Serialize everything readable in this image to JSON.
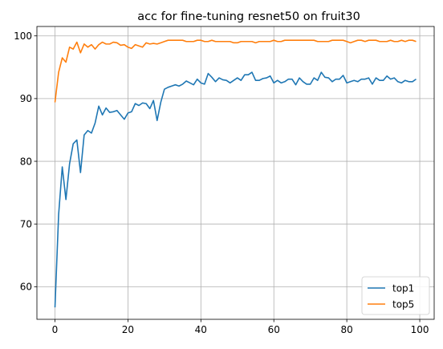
{
  "chart_data": {
    "type": "line",
    "title": "acc for fine-tuning resnet50 on fruit30",
    "xlabel": "",
    "ylabel": "",
    "xlim": [
      -4.95,
      103.95
    ],
    "ylim": [
      54.8,
      101.5
    ],
    "x_ticks": [
      0,
      20,
      40,
      60,
      80,
      100
    ],
    "y_ticks": [
      60,
      70,
      80,
      90,
      100
    ],
    "grid": true,
    "legend_position": "lower-right",
    "x": [
      0,
      1,
      2,
      3,
      4,
      5,
      6,
      7,
      8,
      9,
      10,
      11,
      12,
      13,
      14,
      15,
      16,
      17,
      18,
      19,
      20,
      21,
      22,
      23,
      24,
      25,
      26,
      27,
      28,
      29,
      30,
      31,
      32,
      33,
      34,
      35,
      36,
      37,
      38,
      39,
      40,
      41,
      42,
      43,
      44,
      45,
      46,
      47,
      48,
      49,
      50,
      51,
      52,
      53,
      54,
      55,
      56,
      57,
      58,
      59,
      60,
      61,
      62,
      63,
      64,
      65,
      66,
      67,
      68,
      69,
      70,
      71,
      72,
      73,
      74,
      75,
      76,
      77,
      78,
      79,
      80,
      81,
      82,
      83,
      84,
      85,
      86,
      87,
      88,
      89,
      90,
      91,
      92,
      93,
      94,
      95,
      96,
      97,
      98,
      99
    ],
    "series": [
      {
        "name": "top1",
        "color": "#1f77b4",
        "values": [
          56.7,
          71.5,
          79.1,
          73.9,
          79.6,
          82.8,
          83.4,
          78.2,
          84.2,
          84.9,
          84.5,
          86.1,
          88.8,
          87.4,
          88.5,
          87.8,
          87.9,
          88.1,
          87.4,
          86.7,
          87.7,
          87.9,
          89.2,
          88.9,
          89.3,
          89.2,
          88.4,
          89.7,
          86.5,
          89.4,
          91.5,
          91.8,
          92.0,
          92.2,
          92.0,
          92.3,
          92.8,
          92.5,
          92.2,
          93.1,
          92.5,
          92.3,
          94.0,
          93.4,
          92.7,
          93.3,
          93.0,
          92.9,
          92.5,
          92.9,
          93.3,
          92.9,
          93.8,
          93.8,
          94.2,
          92.9,
          92.9,
          93.2,
          93.3,
          93.6,
          92.5,
          92.9,
          92.5,
          92.7,
          93.1,
          93.1,
          92.2,
          93.3,
          92.7,
          92.3,
          92.3,
          93.3,
          92.9,
          94.2,
          93.4,
          93.3,
          92.7,
          93.1,
          93.1,
          93.7,
          92.5,
          92.7,
          92.9,
          92.7,
          93.1,
          93.1,
          93.3,
          92.3,
          93.3,
          92.9,
          92.9,
          93.6,
          93.1,
          93.3,
          92.7,
          92.5,
          92.9,
          92.7,
          92.7,
          93.1
        ]
      },
      {
        "name": "top5",
        "color": "#ff7f0e",
        "values": [
          89.4,
          94.2,
          96.5,
          95.8,
          98.2,
          97.9,
          99.0,
          97.3,
          98.7,
          98.2,
          98.6,
          97.9,
          98.6,
          99.0,
          98.7,
          98.7,
          99.0,
          98.9,
          98.5,
          98.6,
          98.2,
          98.0,
          98.6,
          98.4,
          98.2,
          98.9,
          98.7,
          98.8,
          98.7,
          98.9,
          99.1,
          99.3,
          99.3,
          99.3,
          99.3,
          99.3,
          99.1,
          99.1,
          99.1,
          99.3,
          99.3,
          99.1,
          99.1,
          99.3,
          99.1,
          99.1,
          99.1,
          99.1,
          99.1,
          98.9,
          98.9,
          99.1,
          99.1,
          99.1,
          99.1,
          98.9,
          99.1,
          99.1,
          99.1,
          99.1,
          99.3,
          99.1,
          99.1,
          99.3,
          99.3,
          99.3,
          99.3,
          99.3,
          99.3,
          99.3,
          99.3,
          99.3,
          99.1,
          99.1,
          99.1,
          99.1,
          99.3,
          99.3,
          99.3,
          99.3,
          99.1,
          98.9,
          99.1,
          99.3,
          99.3,
          99.1,
          99.3,
          99.3,
          99.3,
          99.1,
          99.1,
          99.1,
          99.3,
          99.1,
          99.1,
          99.3,
          99.1,
          99.3,
          99.3,
          99.1
        ]
      }
    ]
  }
}
